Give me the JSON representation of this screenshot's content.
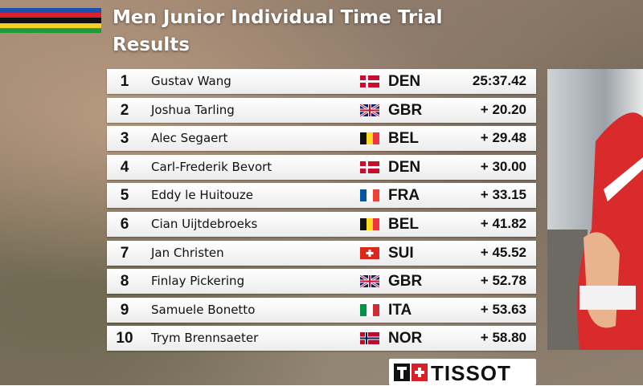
{
  "header": {
    "title_line1": "Men Junior Individual Time Trial",
    "title_line2": "Results"
  },
  "results": [
    {
      "rank": "1",
      "name": "Gustav Wang",
      "country": "DEN",
      "time": "25:37.42"
    },
    {
      "rank": "2",
      "name": "Joshua Tarling",
      "country": "GBR",
      "time": "+ 20.20"
    },
    {
      "rank": "3",
      "name": "Alec Segaert",
      "country": "BEL",
      "time": "+ 29.48"
    },
    {
      "rank": "4",
      "name": "Carl-Frederik Bevort",
      "country": "DEN",
      "time": "+ 30.00"
    },
    {
      "rank": "5",
      "name": "Eddy le Huitouze",
      "country": "FRA",
      "time": "+ 33.15"
    },
    {
      "rank": "6",
      "name": "Cian Uijtdebroeks",
      "country": "BEL",
      "time": "+ 41.82"
    },
    {
      "rank": "7",
      "name": "Jan Christen",
      "country": "SUI",
      "time": "+ 45.52"
    },
    {
      "rank": "8",
      "name": "Finlay Pickering",
      "country": "GBR",
      "time": "+ 52.78"
    },
    {
      "rank": "9",
      "name": "Samuele Bonetto",
      "country": "ITA",
      "time": "+ 53.63"
    },
    {
      "rank": "10",
      "name": "Trym Brennsaeter",
      "country": "NOR",
      "time": "+ 58.80"
    }
  ],
  "sponsor": "TISSOT"
}
